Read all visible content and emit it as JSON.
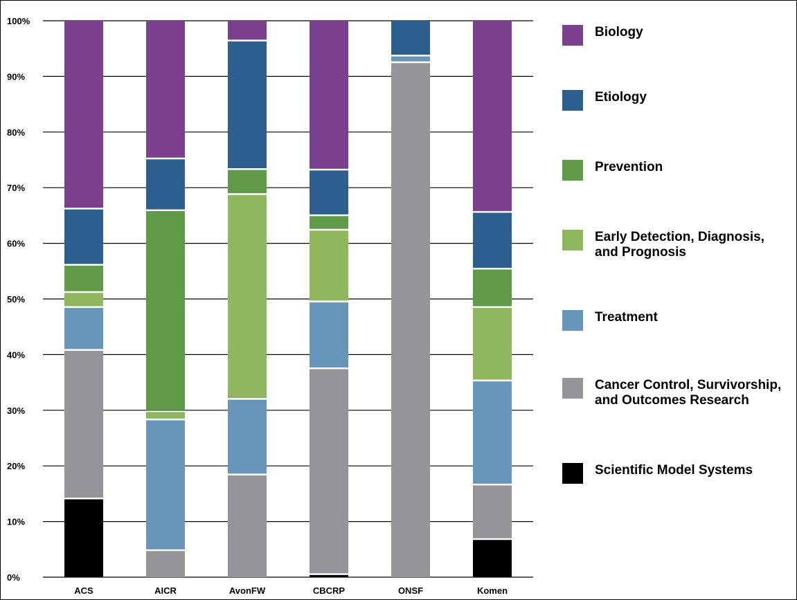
{
  "chart_data": {
    "type": "bar",
    "stacked": true,
    "y_ticks": [
      "0%",
      "10%",
      "20%",
      "30%",
      "40%",
      "50%",
      "60%",
      "70%",
      "80%",
      "90%",
      "100%"
    ],
    "ylim": [
      0,
      100
    ],
    "categories": [
      "ACS",
      "AICR",
      "AvonFW",
      "CBCRP",
      "ONSF",
      "Komen"
    ],
    "legend_position": "right",
    "series": [
      {
        "name": "Scientific Model Systems",
        "color": "#000000",
        "values": [
          14.3,
          0,
          0,
          0.7,
          0,
          7
        ]
      },
      {
        "name": "Cancer Control, Survivorship, and Outcomes Research",
        "color": "#939598",
        "values": [
          26.7,
          5,
          18.6,
          37,
          92.7,
          9.8
        ]
      },
      {
        "name": "Treatment",
        "color": "#6896bb",
        "values": [
          7.7,
          23.5,
          13.6,
          12,
          1.2,
          18.7
        ]
      },
      {
        "name": "Early Detection, Diagnosis, and Prognosis",
        "color": "#8fb85e",
        "values": [
          2.7,
          1.5,
          36.8,
          12.9,
          0,
          13.2
        ]
      },
      {
        "name": "Prevention",
        "color": "#5e9a48",
        "values": [
          4.9,
          36.1,
          4.5,
          2.6,
          0,
          6.9
        ]
      },
      {
        "name": "Etiology",
        "color": "#2d5f8e",
        "values": [
          10.1,
          9.3,
          23.1,
          8.2,
          6.1,
          10.2
        ]
      },
      {
        "name": "Biology",
        "color": "#7c418e",
        "values": [
          33.6,
          24.6,
          3.4,
          26.6,
          0,
          34.2
        ]
      }
    ]
  },
  "legend": [
    {
      "label": "Biology",
      "color": "#7c418e"
    },
    {
      "label": "Etiology",
      "color": "#2d5f8e"
    },
    {
      "label": "Prevention",
      "color": "#5e9a48"
    },
    {
      "label": "Early Detection, Diagnosis,\nand Prognosis",
      "color": "#8fb85e"
    },
    {
      "label": "Treatment",
      "color": "#6896bb"
    },
    {
      "label": "Cancer Control, Survivorship,\nand Outcomes Research",
      "color": "#939598"
    },
    {
      "label": "Scientific Model Systems",
      "color": "#000000"
    }
  ]
}
